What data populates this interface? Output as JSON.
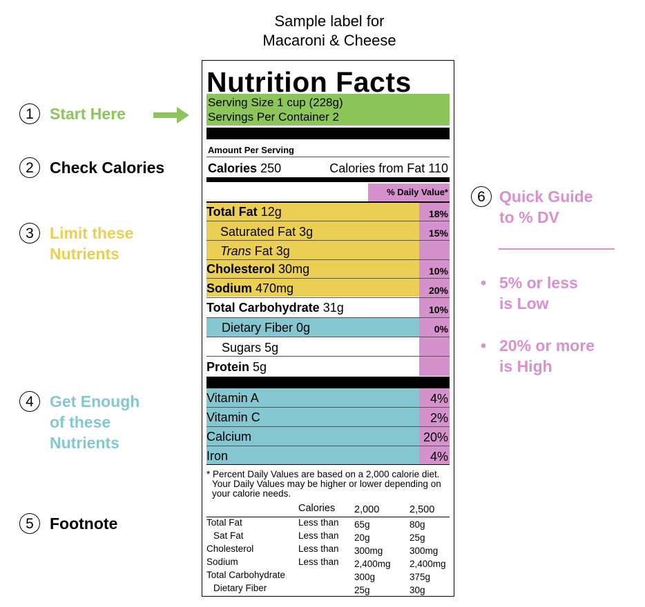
{
  "header": {
    "line1": "Sample label for",
    "line2": "Macaroni & Cheese"
  },
  "callouts": [
    {
      "num": "1",
      "lines": [
        "Start Here"
      ],
      "color": "#8cc65a"
    },
    {
      "num": "2",
      "lines": [
        "Check Calories"
      ],
      "color": "#000000"
    },
    {
      "num": "3",
      "lines": [
        "Limit these",
        "Nutrients"
      ],
      "color": "#ebcf55"
    },
    {
      "num": "4",
      "lines": [
        "Get Enough",
        "of these",
        "Nutrients"
      ],
      "color": "#84c7d0"
    },
    {
      "num": "5",
      "lines": [
        "Footnote"
      ],
      "color": "#000000"
    },
    {
      "num": "6",
      "lines": [
        "Quick Guide",
        "to % DV"
      ],
      "color": "#da8fcf"
    }
  ],
  "guide": {
    "low": [
      "5% or less",
      "is Low"
    ],
    "high": [
      "20% or more",
      "is High"
    ]
  },
  "label": {
    "title": "Nutrition Facts",
    "serving_size": "Serving Size 1 cup (228g)",
    "servings_per": "Servings Per Container 2",
    "amount_per_serving": "Amount Per Serving",
    "calories_label": "Calories",
    "calories_value": "250",
    "calories_fat": "Calories from Fat 110",
    "dv_header": "% Daily Value*",
    "nutrients": [
      {
        "name": "Total Fat",
        "amount": "12g",
        "dv": "18%"
      },
      {
        "name": "Saturated Fat",
        "amount": "3g",
        "dv": "15%"
      },
      {
        "name": "Trans",
        "amount": "Fat 3g",
        "dv": ""
      },
      {
        "name": "Cholesterol",
        "amount": "30mg",
        "dv": "10%"
      },
      {
        "name": "Sodium",
        "amount": "470mg",
        "dv": "20%"
      },
      {
        "name": "Total Carbohydrate",
        "amount": "31g",
        "dv": "10%"
      },
      {
        "name": "Dietary Fiber",
        "amount": "0g",
        "dv": "0%"
      },
      {
        "name": "Sugars",
        "amount": "5g",
        "dv": ""
      },
      {
        "name": "Protein",
        "amount": "5g",
        "dv": ""
      }
    ],
    "vitamins": [
      {
        "name": "Vitamin A",
        "dv": "4%"
      },
      {
        "name": "Vitamin C",
        "dv": "2%"
      },
      {
        "name": "Calcium",
        "dv": "20%"
      },
      {
        "name": "Iron",
        "dv": "4%"
      }
    ],
    "footnote": [
      "* Percent Daily Values are based on a 2,000 calorie diet.",
      "Your Daily Values may be higher or lower depending on",
      "your calorie needs."
    ],
    "table_header": [
      "Calories",
      "2,000",
      "2,500"
    ],
    "table_rows": [
      [
        "Total Fat",
        "Less than",
        "65g",
        "80g"
      ],
      [
        "Sat Fat",
        "Less than",
        "20g",
        "25g"
      ],
      [
        "Cholesterol",
        "Less than",
        "300mg",
        "300mg"
      ],
      [
        "Sodium",
        "Less than",
        "2,400mg",
        "2,400mg"
      ],
      [
        "Total Carbohydrate",
        "",
        "300g",
        "375g"
      ],
      [
        "Dietary Fiber",
        "",
        "25g",
        "30g"
      ]
    ]
  }
}
